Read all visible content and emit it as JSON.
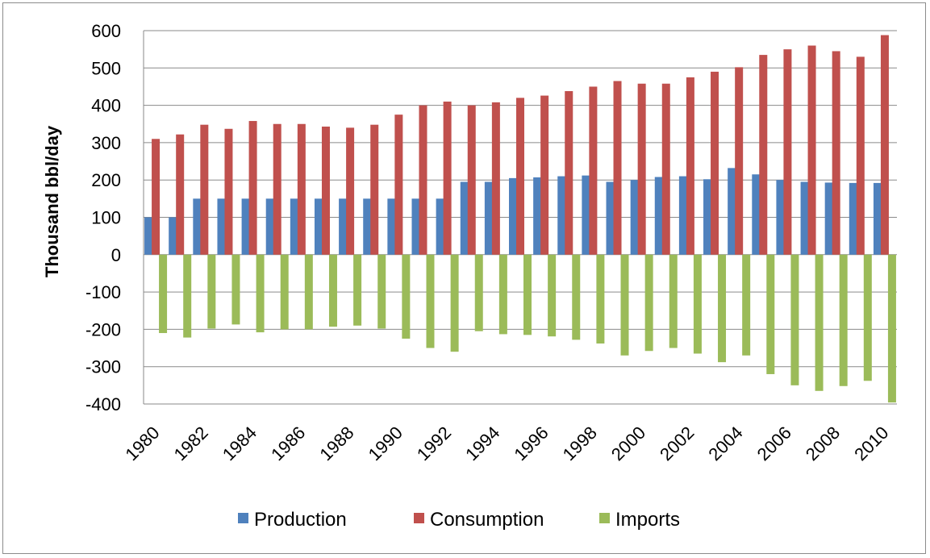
{
  "chart_data": {
    "type": "bar",
    "title": "",
    "xlabel": "",
    "ylabel": "Thousand bbl/day",
    "ylim": [
      -400,
      600
    ],
    "yticks": [
      600,
      500,
      400,
      300,
      200,
      100,
      0,
      -100,
      -200,
      -300,
      -400
    ],
    "grid": true,
    "legend_position": "bottom",
    "categories": [
      "1980",
      "1981",
      "1982",
      "1983",
      "1984",
      "1985",
      "1986",
      "1987",
      "1988",
      "1989",
      "1990",
      "1991",
      "1992",
      "1993",
      "1994",
      "1995",
      "1996",
      "1997",
      "1998",
      "1999",
      "2000",
      "2001",
      "2002",
      "2003",
      "2004",
      "2005",
      "2006",
      "2007",
      "2008",
      "2009",
      "2010"
    ],
    "x_tick_labels": [
      "1980",
      "1982",
      "1984",
      "1986",
      "1988",
      "1990",
      "1992",
      "1994",
      "1996",
      "1998",
      "2000",
      "2002",
      "2004",
      "2006",
      "2008",
      "2010"
    ],
    "series": [
      {
        "name": "Production",
        "color": "#4f81bd",
        "values": [
          100,
          100,
          150,
          150,
          150,
          150,
          150,
          150,
          150,
          150,
          150,
          150,
          150,
          195,
          195,
          205,
          207,
          210,
          212,
          195,
          200,
          208,
          210,
          202,
          232,
          215,
          200,
          195,
          193,
          192,
          192
        ]
      },
      {
        "name": "Consumption",
        "color": "#c0504d",
        "values": [
          310,
          322,
          348,
          337,
          358,
          350,
          350,
          343,
          340,
          348,
          375,
          400,
          410,
          400,
          408,
          420,
          426,
          438,
          450,
          465,
          458,
          458,
          475,
          490,
          502,
          535,
          550,
          560,
          545,
          530,
          588
        ]
      },
      {
        "name": "Imports",
        "color": "#9bbb59",
        "values": [
          -210,
          -222,
          -198,
          -187,
          -208,
          -200,
          -200,
          -193,
          -190,
          -198,
          -225,
          -250,
          -260,
          -205,
          -213,
          -215,
          -219,
          -228,
          -238,
          -270,
          -258,
          -250,
          -265,
          -288,
          -270,
          -320,
          -350,
          -365,
          -352,
          -338,
          -396
        ]
      }
    ]
  }
}
